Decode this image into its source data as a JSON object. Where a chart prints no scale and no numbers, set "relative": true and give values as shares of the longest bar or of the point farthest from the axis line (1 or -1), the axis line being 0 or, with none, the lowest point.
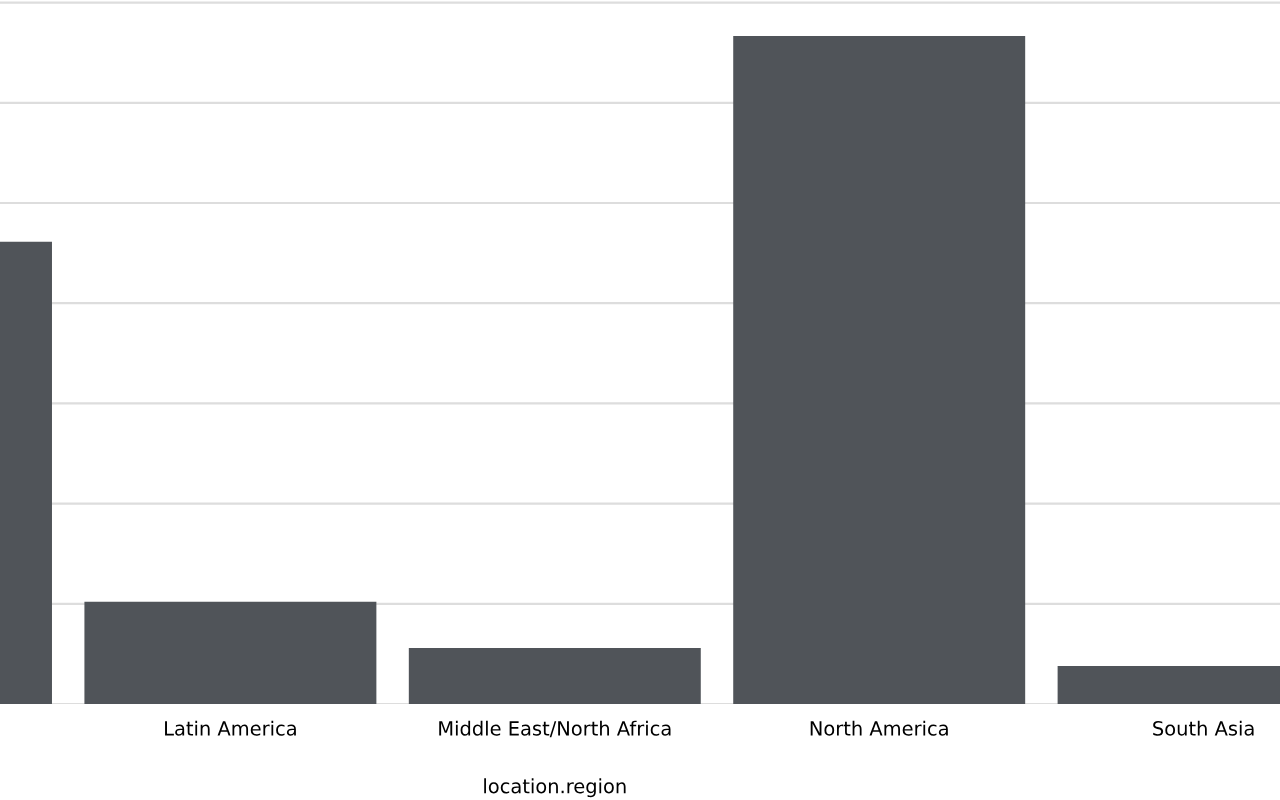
{
  "chart_data": {
    "type": "bar",
    "relative": true,
    "xlabel": "location.region",
    "categories": [
      null,
      "Latin America",
      "Middle East/North Africa",
      "North America",
      "South Asia"
    ],
    "values": [
      0.692,
      0.153,
      0.084,
      1,
      0.057
    ],
    "color": "#505459",
    "grid": "y",
    "legend": false
  }
}
